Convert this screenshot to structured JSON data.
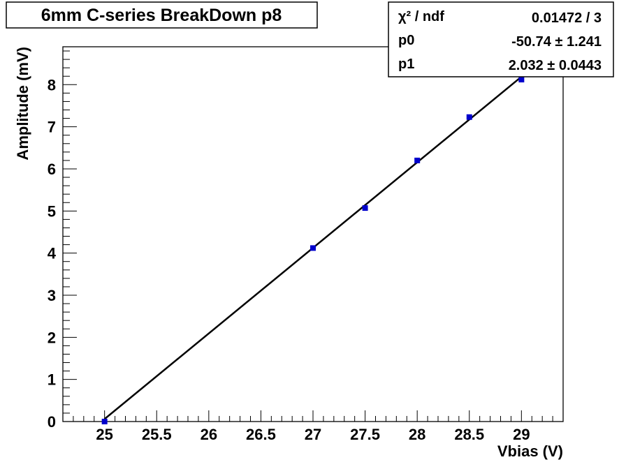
{
  "chart_data": {
    "type": "scatter",
    "title": "6mm C-series BreakDown p8",
    "xlabel": "Vbias (V)",
    "ylabel": "Amplitude (mV)",
    "xlim": [
      24.6,
      29.4
    ],
    "ylim": [
      0,
      8.9
    ],
    "x_ticks": [
      "25",
      "25.5",
      "26",
      "26.5",
      "27",
      "27.5",
      "28",
      "28.5",
      "29"
    ],
    "y_ticks": [
      "0",
      "1",
      "2",
      "3",
      "4",
      "5",
      "6",
      "7",
      "8"
    ],
    "points": [
      {
        "x": 25.0,
        "y": 0.0
      },
      {
        "x": 27.0,
        "y": 4.12
      },
      {
        "x": 27.5,
        "y": 5.07
      },
      {
        "x": 28.0,
        "y": 6.2
      },
      {
        "x": 28.5,
        "y": 7.23
      },
      {
        "x": 29.0,
        "y": 8.12
      }
    ],
    "fit": {
      "p0": -50.74,
      "p1": 2.032,
      "x_range": [
        25.0,
        29.0
      ]
    },
    "stats_box": {
      "chi2_label": "χ² / ndf",
      "chi2_value": "0.01472 / 3",
      "p0_label": "p0",
      "p0_value": "-50.74 ± 1.241",
      "p1_label": "p1",
      "p1_value": "2.032 ± 0.0443"
    },
    "point_color": "#0000cc",
    "line_color": "#000000",
    "grid": false
  }
}
